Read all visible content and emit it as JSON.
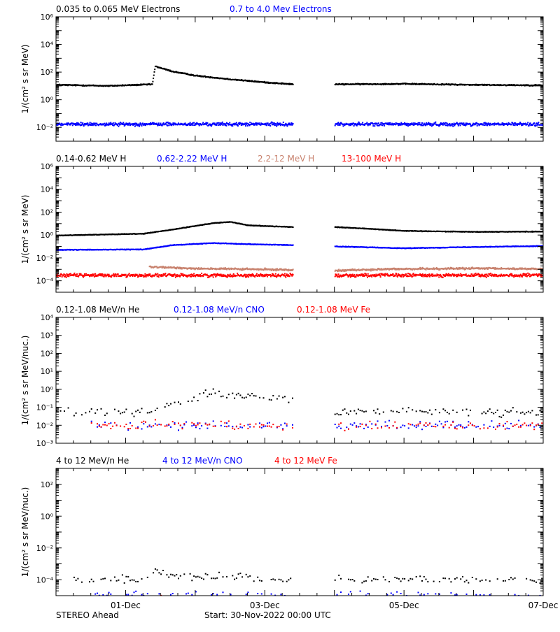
{
  "footer": {
    "left": "STEREO Ahead",
    "center": "Start: 30-Nov-2022 00:00 UTC"
  },
  "time_axis": {
    "start": "2022-11-30T00:00",
    "end": "2022-12-07T00:00",
    "tick_labels": [
      {
        "date": "2022-12-01",
        "label": "01-Dec"
      },
      {
        "date": "2022-12-03",
        "label": "03-Dec"
      },
      {
        "date": "2022-12-05",
        "label": "05-Dec"
      },
      {
        "date": "2022-12-07",
        "label": "07-Dec"
      }
    ],
    "data_gap": [
      "2022-12-03T09:30",
      "2022-12-04T00:00"
    ]
  },
  "chart_data": [
    {
      "type": "scatter",
      "yscale": "log",
      "ylim": [
        0.001,
        1000000
      ],
      "ylabel": "1/(cm² s sr MeV)",
      "yticks": [
        {
          "v": 0.01,
          "label": "10⁻²"
        },
        {
          "v": 1,
          "label": "10⁰"
        },
        {
          "v": 100,
          "label": "10²"
        },
        {
          "v": 10000,
          "label": "10⁴"
        },
        {
          "v": 1000000,
          "label": "10⁶"
        }
      ],
      "legend": [
        {
          "label": "0.035 to 0.065 MeV Electrons",
          "color": "#000000"
        },
        {
          "label": "0.7 to 4.0 Mev Electrons",
          "color": "#0000ff"
        }
      ],
      "series": [
        {
          "name": "0.035 to 0.065 MeV Electrons",
          "color": "#000000",
          "style": "dense",
          "scatter": 0.06,
          "points": [
            [
              "2022-11-30T00:00",
              12
            ],
            [
              "2022-11-30T18:00",
              10
            ],
            [
              "2022-12-01T09:00",
              13
            ],
            [
              "2022-12-01T10:00",
              260
            ],
            [
              "2022-12-01T16:00",
              110
            ],
            [
              "2022-12-02T00:00",
              55
            ],
            [
              "2022-12-02T12:00",
              30
            ],
            [
              "2022-12-03T00:00",
              18
            ],
            [
              "2022-12-03T09:30",
              13
            ],
            [
              "2022-12-04T00:00",
              13
            ],
            [
              "2022-12-05T00:00",
              14
            ],
            [
              "2022-12-06T00:00",
              12
            ],
            [
              "2022-12-07T00:00",
              11
            ]
          ]
        },
        {
          "name": "0.7 to 4.0 Mev Electrons",
          "color": "#0000ff",
          "style": "noisy",
          "scatter": 0.18,
          "points": [
            [
              "2022-11-30T00:00",
              0.017
            ],
            [
              "2022-12-03T09:30",
              0.017
            ],
            [
              "2022-12-04T00:00",
              0.017
            ],
            [
              "2022-12-07T00:00",
              0.017
            ]
          ]
        }
      ]
    },
    {
      "type": "scatter",
      "yscale": "log",
      "ylim": [
        1e-05,
        1000000
      ],
      "ylabel": "1/(cm² s sr MeV)",
      "yticks": [
        {
          "v": 0.0001,
          "label": "10⁻⁴"
        },
        {
          "v": 0.01,
          "label": "10⁻²"
        },
        {
          "v": 1,
          "label": "10⁰"
        },
        {
          "v": 100,
          "label": "10²"
        },
        {
          "v": 10000,
          "label": "10⁴"
        },
        {
          "v": 1000000,
          "label": "10⁶"
        }
      ],
      "legend": [
        {
          "label": "0.14-0.62 MeV H",
          "color": "#000000"
        },
        {
          "label": "0.62-2.22 MeV H",
          "color": "#0000ff"
        },
        {
          "label": "2.2-12 MeV H",
          "color": "#c8826e"
        },
        {
          "label": "13-100 MeV H",
          "color": "#ff0000"
        }
      ],
      "series": [
        {
          "name": "13-100 MeV H",
          "color": "#ff0000",
          "style": "noisy",
          "scatter": 0.22,
          "points": [
            [
              "2022-11-30T00:00",
              0.0003
            ],
            [
              "2022-12-03T09:30",
              0.0003
            ],
            [
              "2022-12-04T00:00",
              0.0003
            ],
            [
              "2022-12-07T00:00",
              0.0003
            ]
          ]
        },
        {
          "name": "2.2-12 MeV H",
          "color": "#c8826e",
          "style": "noisy",
          "scatter": 0.12,
          "points": [
            [
              "2022-12-01T08:00",
              0.0016
            ],
            [
              "2022-12-02T00:00",
              0.0012
            ],
            [
              "2022-12-03T09:30",
              0.0009
            ],
            [
              "2022-12-04T00:00",
              0.0008
            ],
            [
              "2022-12-05T00:00",
              0.0011
            ],
            [
              "2022-12-06T00:00",
              0.0012
            ],
            [
              "2022-12-07T00:00",
              0.0011
            ]
          ]
        },
        {
          "name": "0.62-2.22 MeV H",
          "color": "#0000ff",
          "style": "dense",
          "scatter": 0.04,
          "points": [
            [
              "2022-11-30T00:00",
              0.05
            ],
            [
              "2022-12-01T06:00",
              0.055
            ],
            [
              "2022-12-01T16:00",
              0.13
            ],
            [
              "2022-12-02T06:00",
              0.2
            ],
            [
              "2022-12-02T18:00",
              0.16
            ],
            [
              "2022-12-03T09:30",
              0.13
            ],
            [
              "2022-12-04T00:00",
              0.1
            ],
            [
              "2022-12-05T00:00",
              0.07
            ],
            [
              "2022-12-06T00:00",
              0.09
            ],
            [
              "2022-12-07T00:00",
              0.11
            ]
          ]
        },
        {
          "name": "0.14-0.62 MeV H",
          "color": "#000000",
          "style": "dense",
          "scatter": 0.04,
          "points": [
            [
              "2022-11-30T00:00",
              0.9
            ],
            [
              "2022-12-01T06:00",
              1.3
            ],
            [
              "2022-12-01T16:00",
              3
            ],
            [
              "2022-12-02T06:00",
              11
            ],
            [
              "2022-12-02T12:00",
              14
            ],
            [
              "2022-12-02T18:00",
              7
            ],
            [
              "2022-12-03T09:30",
              5
            ],
            [
              "2022-12-04T00:00",
              5
            ],
            [
              "2022-12-04T12:00",
              3.5
            ],
            [
              "2022-12-05T00:00",
              2.3
            ],
            [
              "2022-12-06T00:00",
              1.9
            ],
            [
              "2022-12-07T00:00",
              2
            ]
          ]
        }
      ]
    },
    {
      "type": "scatter",
      "yscale": "log",
      "ylim": [
        0.001,
        10000
      ],
      "ylabel": "1/(cm² s sr MeV/nuc.)",
      "yticks": [
        {
          "v": 0.001,
          "label": "10⁻³"
        },
        {
          "v": 0.01,
          "label": "10⁻²"
        },
        {
          "v": 0.1,
          "label": "10⁻¹"
        },
        {
          "v": 1,
          "label": "10⁰"
        },
        {
          "v": 10,
          "label": "10¹"
        },
        {
          "v": 100,
          "label": "10²"
        },
        {
          "v": 1000,
          "label": "10³"
        },
        {
          "v": 10000,
          "label": "10⁴"
        }
      ],
      "legend": [
        {
          "label": "0.12-1.08 MeV/n He",
          "color": "#000000"
        },
        {
          "label": "0.12-1.08 MeV/n CNO",
          "color": "#0000ff"
        },
        {
          "label": "0.12-1.08 MeV Fe",
          "color": "#ff0000"
        }
      ],
      "series": [
        {
          "name": "0.12-1.08 MeV/n He",
          "color": "#000000",
          "style": "sparse",
          "points": [
            [
              "2022-11-30T00:00",
              0.05
            ],
            [
              "2022-12-01T10:00",
              0.06
            ],
            [
              "2022-12-01T18:00",
              0.2
            ],
            [
              "2022-12-02T06:00",
              0.6
            ],
            [
              "2022-12-02T18:00",
              0.4
            ],
            [
              "2022-12-03T09:30",
              0.25
            ],
            [
              "2022-12-04T00:00",
              0.06
            ],
            [
              "2022-12-07T00:00",
              0.05
            ]
          ]
        },
        {
          "name": "0.12-1.08 MeV/n CNO",
          "color": "#0000ff",
          "style": "sparse",
          "points": [
            [
              "2022-11-30T12:00",
              0.01
            ],
            [
              "2022-12-03T09:30",
              0.01
            ],
            [
              "2022-12-04T00:00",
              0.01
            ],
            [
              "2022-12-07T00:00",
              0.01
            ]
          ]
        },
        {
          "name": "0.12-1.08 MeV Fe",
          "color": "#ff0000",
          "style": "sparse",
          "points": [
            [
              "2022-11-30T12:00",
              0.01
            ],
            [
              "2022-12-03T09:30",
              0.01
            ],
            [
              "2022-12-04T00:00",
              0.01
            ],
            [
              "2022-12-07T00:00",
              0.01
            ]
          ]
        }
      ]
    },
    {
      "type": "scatter",
      "yscale": "log",
      "ylim": [
        1e-05,
        1000
      ],
      "ylabel": "1/(cm² s sr MeV/nuc.)",
      "yticks": [
        {
          "v": 0.0001,
          "label": "10⁻⁴"
        },
        {
          "v": 0.01,
          "label": "10⁻²"
        },
        {
          "v": 1,
          "label": "10⁰"
        },
        {
          "v": 100,
          "label": "10²"
        }
      ],
      "legend": [
        {
          "label": "4 to 12 MeV/n He",
          "color": "#000000"
        },
        {
          "label": "4 to 12 MeV/n CNO",
          "color": "#0000ff"
        },
        {
          "label": "4 to 12 MeV Fe",
          "color": "#ff0000"
        }
      ],
      "series": [
        {
          "name": "4 to 12 MeV/n He",
          "color": "#000000",
          "style": "sparse",
          "points": [
            [
              "2022-11-30T06:00",
              0.0001
            ],
            [
              "2022-12-01T08:00",
              0.0001
            ],
            [
              "2022-12-01T10:00",
              0.0004
            ],
            [
              "2022-12-01T14:00",
              0.0002
            ],
            [
              "2022-12-03T09:30",
              0.0001
            ],
            [
              "2022-12-04T00:00",
              0.0001
            ],
            [
              "2022-12-07T00:00",
              0.0001
            ]
          ]
        },
        {
          "name": "4 to 12 MeV/n CNO",
          "color": "#0000ff",
          "style": "sparse",
          "points": [
            [
              "2022-11-30T12:00",
              1e-05
            ],
            [
              "2022-12-03T09:30",
              1e-05
            ],
            [
              "2022-12-04T00:00",
              1e-05
            ],
            [
              "2022-12-07T00:00",
              1e-05
            ]
          ]
        },
        {
          "name": "4 to 12 MeV Fe",
          "color": "#ff0000",
          "style": "sparse",
          "points": [
            [
              "2022-12-01T10:00",
              1e-05
            ],
            [
              "2022-12-01T12:00",
              1e-05
            ]
          ]
        }
      ]
    }
  ]
}
